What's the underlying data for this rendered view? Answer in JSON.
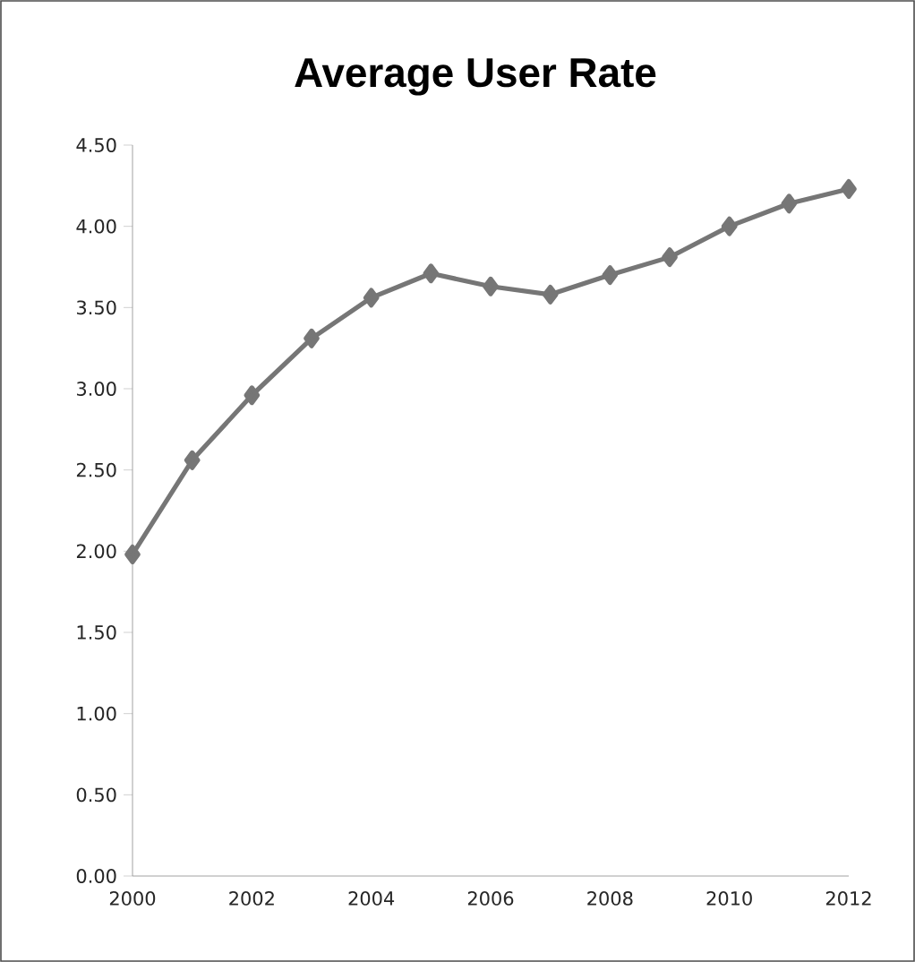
{
  "chart_data": {
    "type": "line",
    "title": "Average User Rate",
    "x": [
      2000,
      2001,
      2002,
      2003,
      2004,
      2005,
      2006,
      2007,
      2008,
      2009,
      2010,
      2011,
      2012
    ],
    "series": [
      {
        "color": "#767676",
        "values": [
          1.98,
          2.56,
          2.96,
          3.31,
          3.56,
          3.71,
          3.63,
          3.58,
          3.7,
          3.81,
          4.0,
          4.14,
          4.23
        ]
      }
    ],
    "xlim": [
      2000,
      2012
    ],
    "xticks": [
      2000,
      2002,
      2004,
      2006,
      2008,
      2010,
      2012
    ],
    "ylim": [
      0,
      4.5
    ],
    "yticks": [
      {
        "value": 0,
        "label": "0.00"
      },
      {
        "value": 0.5,
        "label": "0.50"
      },
      {
        "value": 1,
        "label": "1.00"
      },
      {
        "value": 1.5,
        "label": "1.50"
      },
      {
        "value": 2,
        "label": "2.00"
      },
      {
        "value": 2.5,
        "label": "2.50"
      },
      {
        "value": 3,
        "label": "3.00"
      },
      {
        "value": 3.5,
        "label": "3.50"
      },
      {
        "value": 4,
        "label": "4.00"
      },
      {
        "value": 4.5,
        "label": "4.50"
      }
    ],
    "grid": false,
    "marker": "diamond",
    "line_style": "solid"
  }
}
